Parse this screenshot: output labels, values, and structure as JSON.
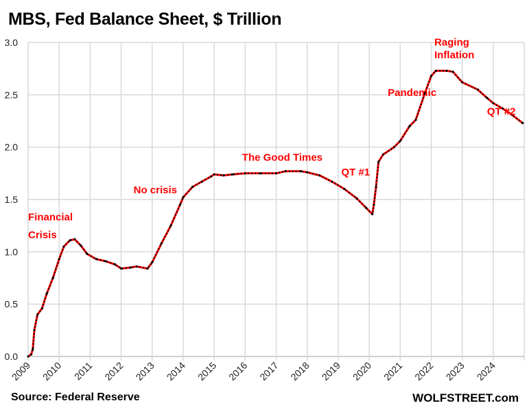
{
  "chart_data": {
    "type": "line",
    "title": "MBS, Fed Balance Sheet, $ Trillion",
    "xlabel": "",
    "ylabel": "",
    "ylim": [
      0,
      3.0
    ],
    "xlim": [
      2009,
      2025
    ],
    "grid": true,
    "y_ticks": [
      "0.0",
      "0.5",
      "1.0",
      "1.5",
      "2.0",
      "2.5",
      "3.0"
    ],
    "x_ticks": [
      "2009",
      "2010",
      "2011",
      "2012",
      "2013",
      "2014",
      "2015",
      "2016",
      "2017",
      "2018",
      "2019",
      "2020",
      "2021",
      "2022",
      "2023",
      "2024"
    ],
    "line_color": "#ff0000",
    "marker_color": "#000000",
    "annotation_color": "#ff0000",
    "series": [
      {
        "x": [
          2009.0,
          2009.1,
          2009.15,
          2009.2,
          2009.3,
          2009.45,
          2009.6,
          2009.8,
          2010.0,
          2010.15,
          2010.35,
          2010.5,
          2010.7,
          2010.9,
          2011.2,
          2011.5,
          2011.8,
          2012.0,
          2012.3,
          2012.5,
          2012.85,
          2013.0,
          2013.3,
          2013.6,
          2013.9,
          2014.0,
          2014.3,
          2014.6,
          2014.9,
          2015.0,
          2015.3,
          2015.6,
          2016.0,
          2016.5,
          2017.0,
          2017.3,
          2017.8,
          2018.0,
          2018.4,
          2018.8,
          2019.2,
          2019.6,
          2019.9,
          2020.1,
          2020.15,
          2020.22,
          2020.3,
          2020.45,
          2020.8,
          2021.0,
          2021.3,
          2021.5,
          2021.8,
          2022.0,
          2022.15,
          2022.5,
          2022.7,
          2023.0,
          2023.5,
          2023.8,
          2024.0,
          2024.3,
          2024.6,
          2024.95
        ],
        "y": [
          0.0,
          0.02,
          0.07,
          0.25,
          0.4,
          0.46,
          0.6,
          0.75,
          0.93,
          1.05,
          1.11,
          1.12,
          1.06,
          0.98,
          0.93,
          0.91,
          0.88,
          0.84,
          0.85,
          0.86,
          0.84,
          0.9,
          1.08,
          1.25,
          1.45,
          1.52,
          1.62,
          1.67,
          1.72,
          1.74,
          1.73,
          1.74,
          1.75,
          1.75,
          1.75,
          1.77,
          1.77,
          1.76,
          1.73,
          1.67,
          1.6,
          1.51,
          1.42,
          1.36,
          1.45,
          1.62,
          1.86,
          1.93,
          2.0,
          2.06,
          2.2,
          2.26,
          2.52,
          2.68,
          2.73,
          2.73,
          2.72,
          2.62,
          2.55,
          2.47,
          2.42,
          2.37,
          2.31,
          2.23
        ]
      }
    ],
    "annotations": [
      {
        "text": "Financial",
        "x": 2009.0,
        "y": 1.3
      },
      {
        "text": "Crisis",
        "x": 2009.0,
        "y": 1.13
      },
      {
        "text": "No crisis",
        "x": 2012.4,
        "y": 1.56
      },
      {
        "text": "The Good Times",
        "x": 2015.9,
        "y": 1.87
      },
      {
        "text": "QT #1",
        "x": 2019.1,
        "y": 1.73
      },
      {
        "text": "Pandemic",
        "x": 2020.6,
        "y": 2.49
      },
      {
        "text": "Raging",
        "x": 2022.1,
        "y": 2.97
      },
      {
        "text": "Inflation",
        "x": 2022.1,
        "y": 2.85
      },
      {
        "text": "QT #2",
        "x": 2023.8,
        "y": 2.31
      }
    ]
  },
  "footer": {
    "source": "Source: Federal Reserve",
    "brand": "WOLFSTREET.com"
  }
}
